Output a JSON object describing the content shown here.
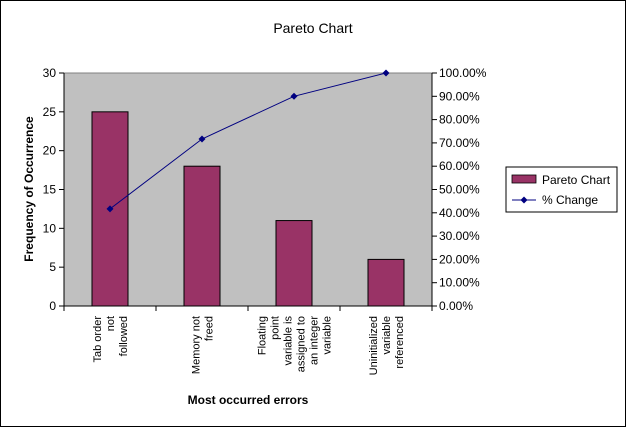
{
  "chart_data": {
    "type": "bar",
    "title": "Pareto Chart",
    "xlabel": "Most occurred errors",
    "ylabel": "Frequency of Occurrence",
    "categories": [
      [
        "Tab order",
        "not",
        "followed"
      ],
      [
        "Memory not",
        "freed"
      ],
      [
        "Floating",
        "point",
        "variable is",
        "assigned to",
        "an integer",
        "variable"
      ],
      [
        "Uninitialized",
        "variable",
        "referenced"
      ]
    ],
    "series": [
      {
        "name": "Pareto Chart",
        "type": "bar",
        "axis": "left",
        "color": "#993366",
        "values": [
          25,
          18,
          11,
          6
        ]
      },
      {
        "name": "% Change",
        "type": "line",
        "axis": "right",
        "color": "#000080",
        "values": [
          41.67,
          71.67,
          90.0,
          100.0
        ]
      }
    ],
    "ylim": [
      0,
      30
    ],
    "yticks": [
      "0",
      "5",
      "10",
      "15",
      "20",
      "25",
      "30"
    ],
    "y2lim": [
      0,
      100
    ],
    "y2ticks": [
      "0.00%",
      "10.00%",
      "20.00%",
      "30.00%",
      "40.00%",
      "50.00%",
      "60.00%",
      "70.00%",
      "80.00%",
      "90.00%",
      "100.00%"
    ],
    "plot_background": "#c0c0c0",
    "grid": false,
    "legend_position": "right"
  }
}
